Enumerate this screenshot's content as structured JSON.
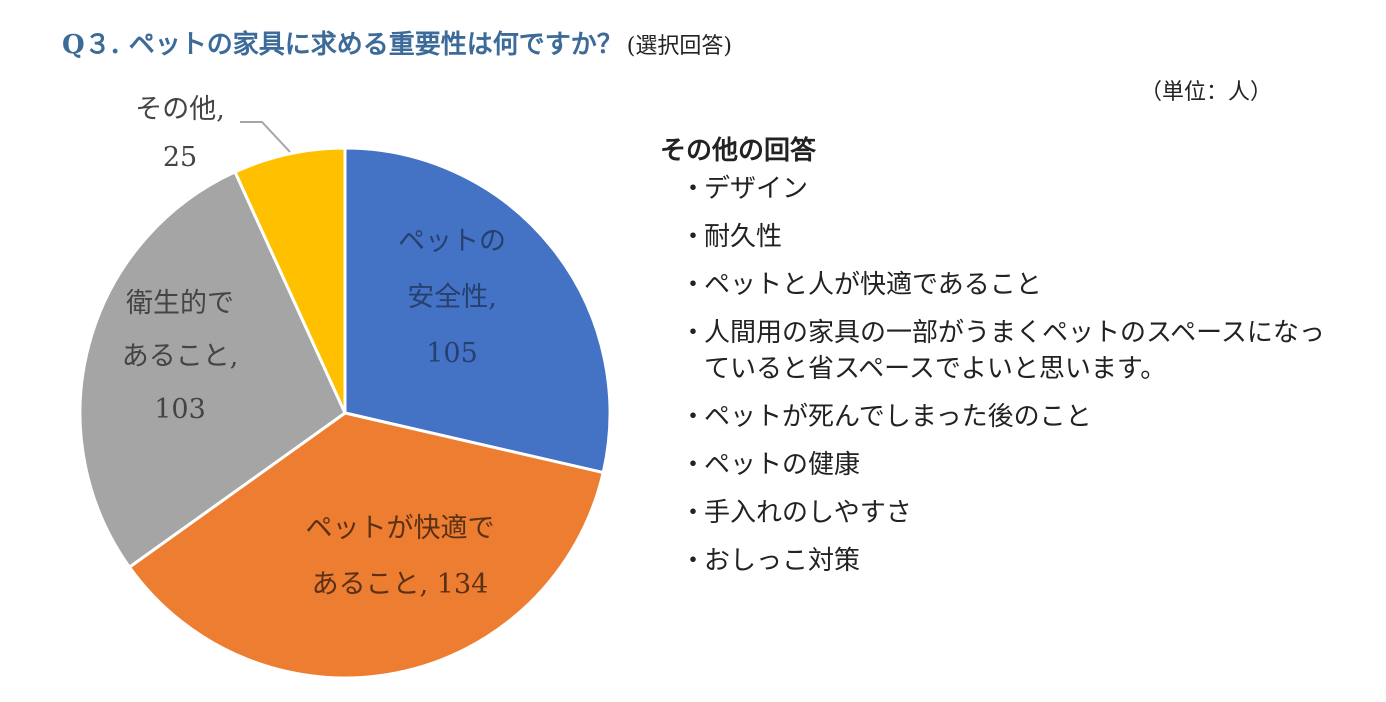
{
  "title": {
    "main": "Q３. ペットの家具に求める重要性は何ですか？",
    "sub": "(選択回答)"
  },
  "unit_label": "（単位：人）",
  "chart_data": {
    "type": "pie",
    "slices": [
      {
        "label_lines": [
          "ペットの",
          "安全性,",
          "105"
        ],
        "value": 105,
        "color": "#4472c4"
      },
      {
        "label_lines": [
          "ペットが快適で",
          "あること, 134"
        ],
        "value": 134,
        "color": "#ed7d31"
      },
      {
        "label_lines": [
          "衛生的で",
          "あること,",
          "103"
        ],
        "value": 103,
        "color": "#a5a5a5"
      },
      {
        "label_lines": [
          "その他,",
          "25"
        ],
        "value": 25,
        "color": "#ffc000"
      }
    ]
  },
  "others": {
    "heading": "その他の回答",
    "bullet": "・",
    "items": [
      "デザイン",
      "耐久性",
      "ペットと人が快適であること",
      "人間用の家具の一部がうまくペットのスペースになっていると省スペースでよいと思います。",
      "ペットが死んでしまった後のこと",
      "ペットの健康",
      "手入れのしやすさ",
      "おしっこ対策"
    ]
  }
}
